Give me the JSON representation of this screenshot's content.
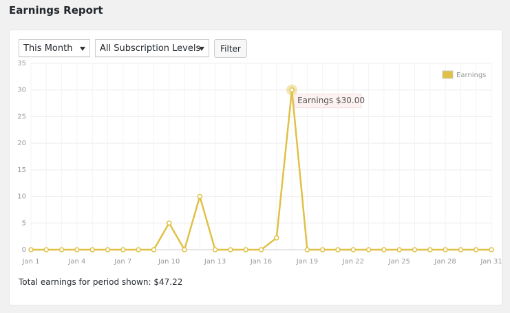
{
  "header": {
    "title": "Earnings Report"
  },
  "filters": {
    "period": "This Month",
    "level": "All Subscription Levels",
    "button": "Filter"
  },
  "chart_data": {
    "type": "line",
    "categories": [
      "Jan 1",
      null,
      null,
      "Jan 4",
      null,
      null,
      "Jan 7",
      null,
      null,
      "Jan 10",
      null,
      null,
      "Jan 13",
      null,
      null,
      "Jan 16",
      null,
      null,
      "Jan 19",
      null,
      null,
      "Jan 22",
      null,
      null,
      "Jan 25",
      null,
      null,
      "Jan 28",
      null,
      null,
      "Jan 31"
    ],
    "series": [
      {
        "name": "Earnings",
        "color": "#e0c045",
        "values": [
          0,
          0,
          0,
          0,
          0,
          0,
          0,
          0,
          0,
          5,
          0,
          10,
          0,
          0,
          0,
          0,
          2.22,
          30,
          0,
          0,
          0,
          0,
          0,
          0,
          0,
          0,
          0,
          0,
          0,
          0,
          0
        ]
      }
    ],
    "ylim": [
      0,
      35
    ],
    "yticks": [
      0,
      5,
      10,
      15,
      20,
      25,
      30,
      35
    ],
    "grid": true,
    "legend": "top-right",
    "annotation": "Earnings $30.00"
  },
  "footer": {
    "total": "Total earnings for period shown: $47.22"
  }
}
